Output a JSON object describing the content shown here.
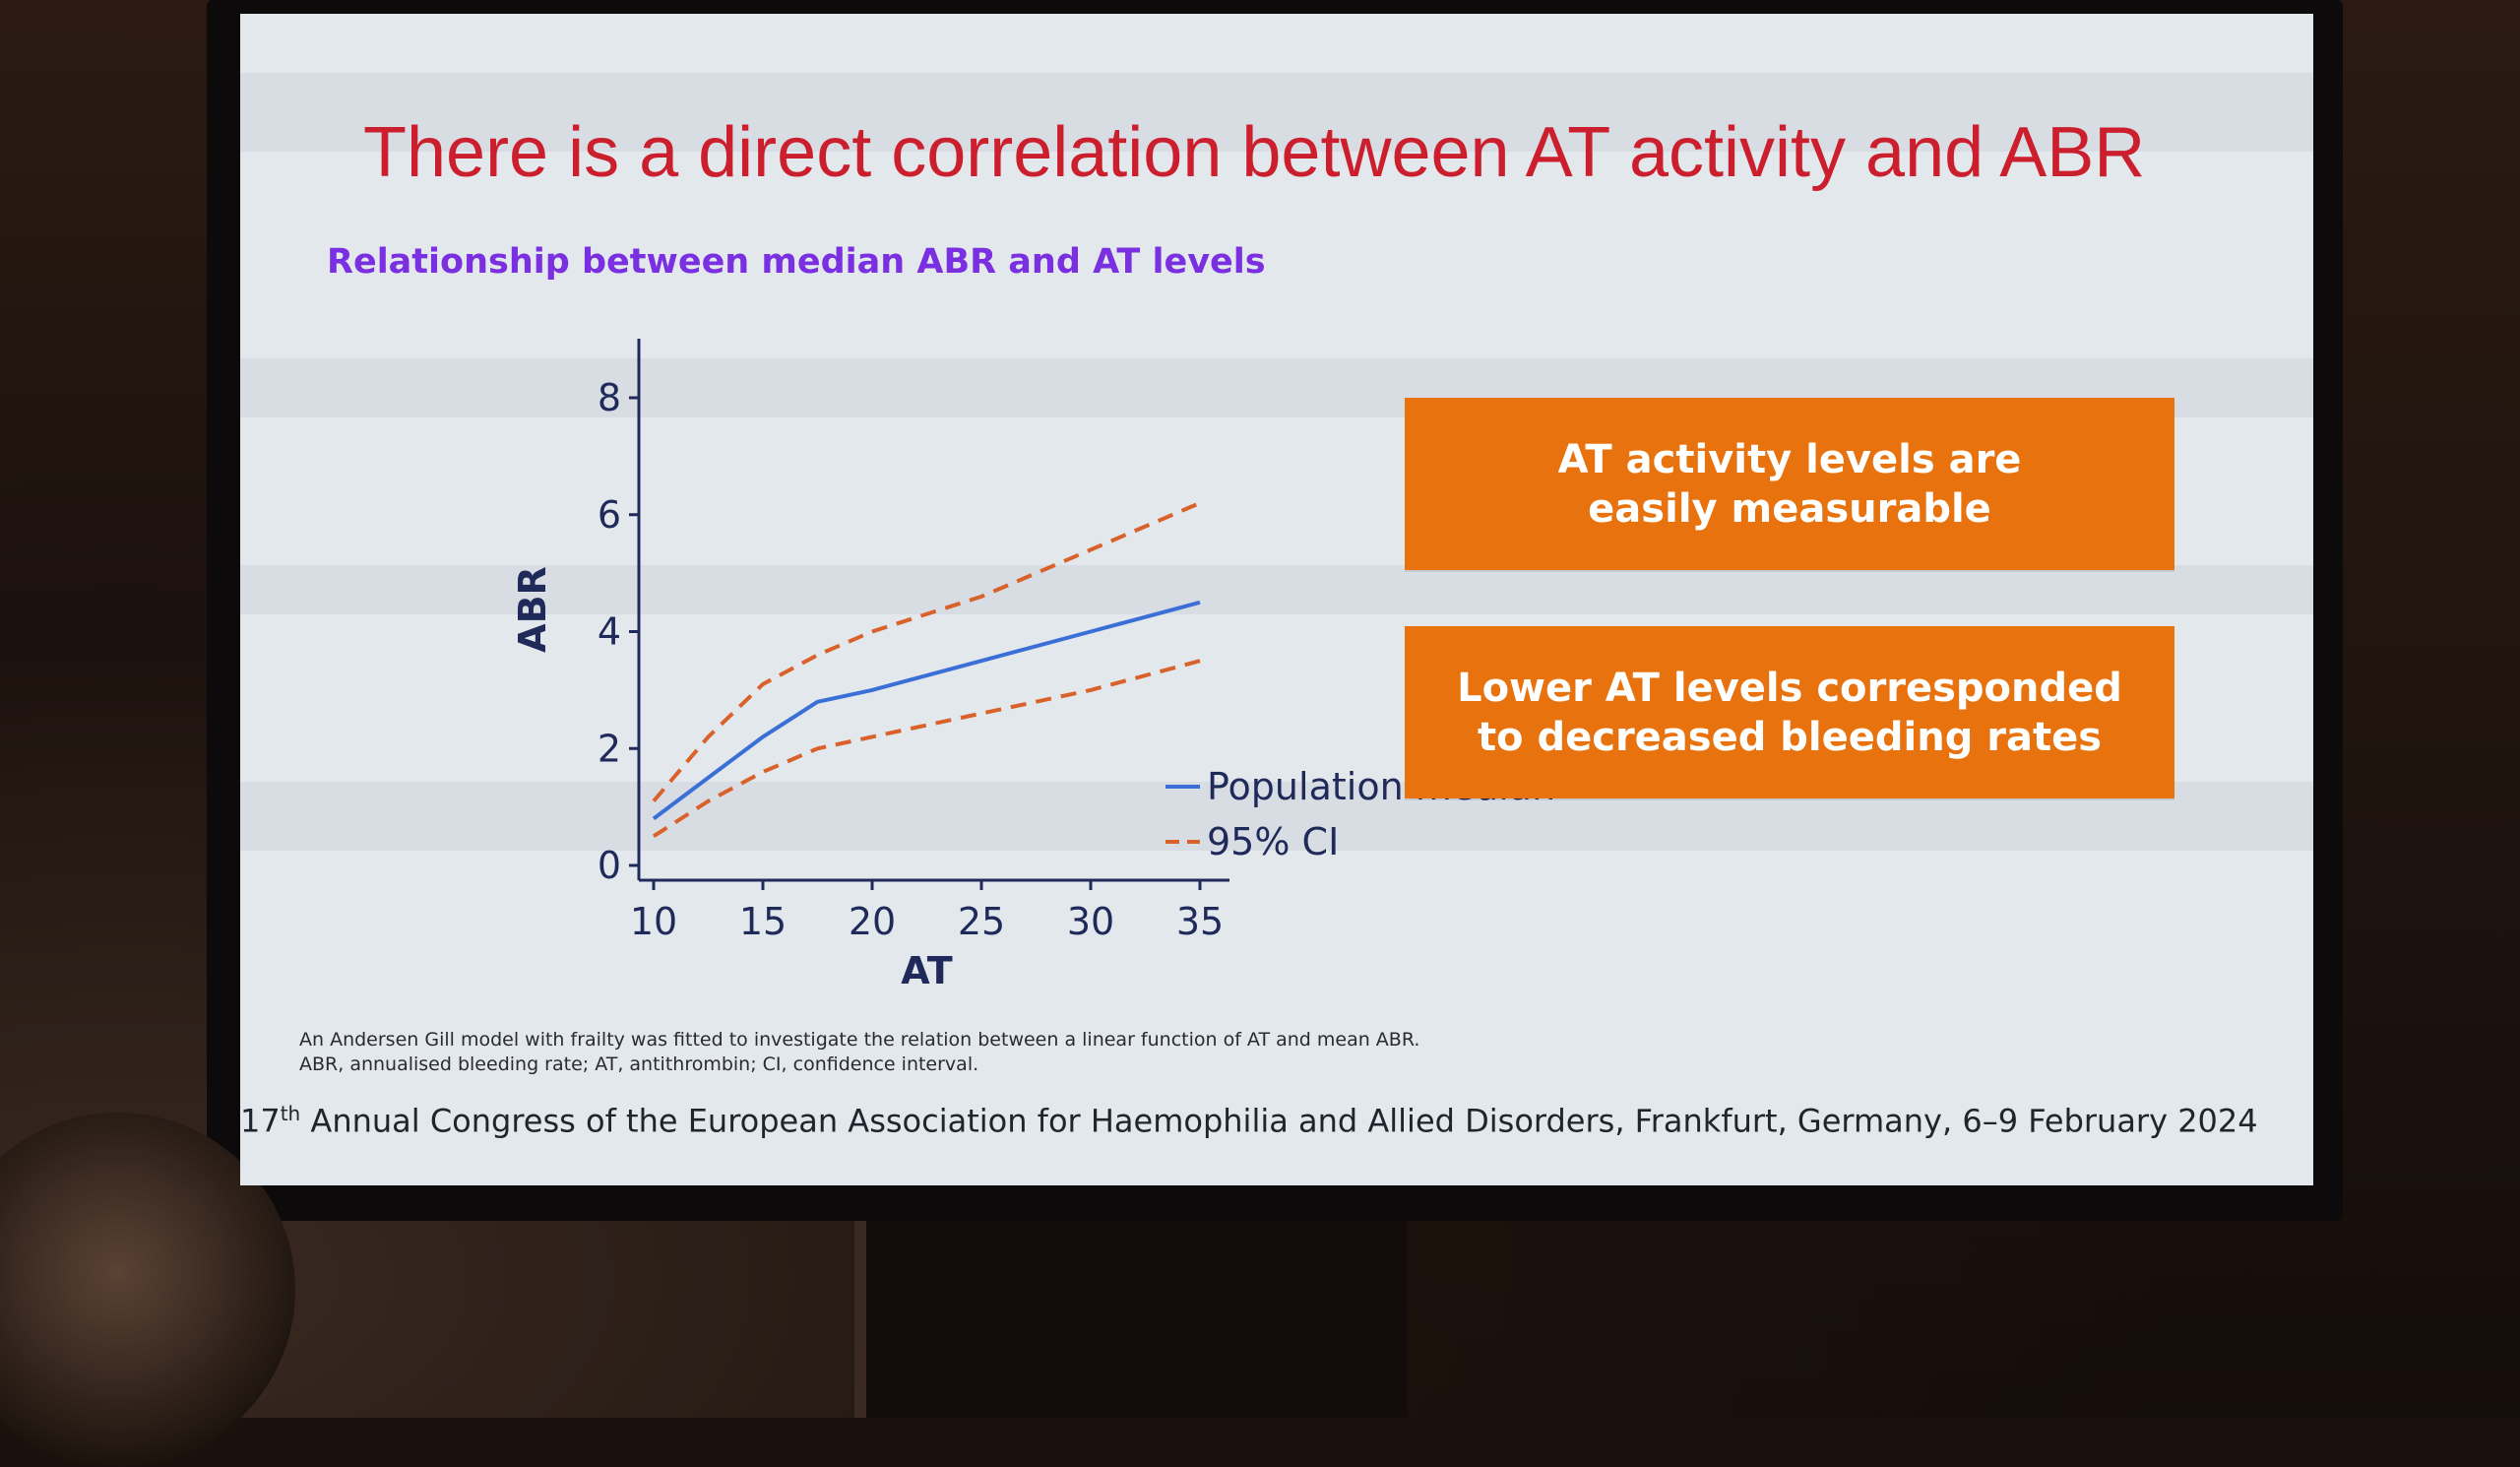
{
  "slide": {
    "title": "There is a direct correlation between AT activity and ABR",
    "subtitle": "Relationship between median ABR and AT levels",
    "box1": "AT activity levels are\neasily measurable",
    "box2": "Lower AT levels corresponded\nto decreased bleeding rates",
    "footnote_line1": "An Andersen Gill model with frailty was fitted to investigate the relation between a linear function of AT and mean ABR.",
    "footnote_line2": "ABR, annualised bleeding rate; AT, antithrombin; CI, confidence interval.",
    "congress_ordinal": "17",
    "congress_sup": "th",
    "congress_text": " Annual Congress of the European Association for Haemophilia and Allied Disorders, Frankfurt, Germany, 6–9 February 2024"
  },
  "colors": {
    "title": "#cc1f2e",
    "subtitle": "#7a2fe0",
    "box": "#e8720e",
    "median_line": "#3a6fd8",
    "ci_line": "#d9622b",
    "axis": "#1f2a5a"
  },
  "chart_data": {
    "type": "line",
    "xlabel": "AT",
    "ylabel": "ABR",
    "xlim": [
      10,
      35
    ],
    "ylim": [
      0,
      8
    ],
    "xticks": [
      10,
      15,
      20,
      25,
      30,
      35
    ],
    "yticks": [
      0,
      2,
      4,
      6,
      8
    ],
    "legend_position": "bottom-right",
    "series": [
      {
        "name": "Population median",
        "style": "solid",
        "x": [
          10,
          12.5,
          15,
          17.5,
          20,
          25,
          30,
          35
        ],
        "y": [
          0.8,
          1.5,
          2.2,
          2.8,
          3.0,
          3.5,
          4.0,
          4.5
        ]
      },
      {
        "name": "95% CI",
        "style": "dashed",
        "x": [
          10,
          12.5,
          15,
          17.5,
          20,
          25,
          30,
          35
        ],
        "y": [
          1.1,
          2.2,
          3.1,
          3.6,
          4.0,
          4.6,
          5.4,
          6.2
        ]
      },
      {
        "name": "95% CI",
        "style": "dashed",
        "x": [
          10,
          12.5,
          15,
          17.5,
          20,
          25,
          30,
          35
        ],
        "y": [
          0.5,
          1.1,
          1.6,
          2.0,
          2.2,
          2.6,
          3.0,
          3.5
        ]
      }
    ]
  }
}
